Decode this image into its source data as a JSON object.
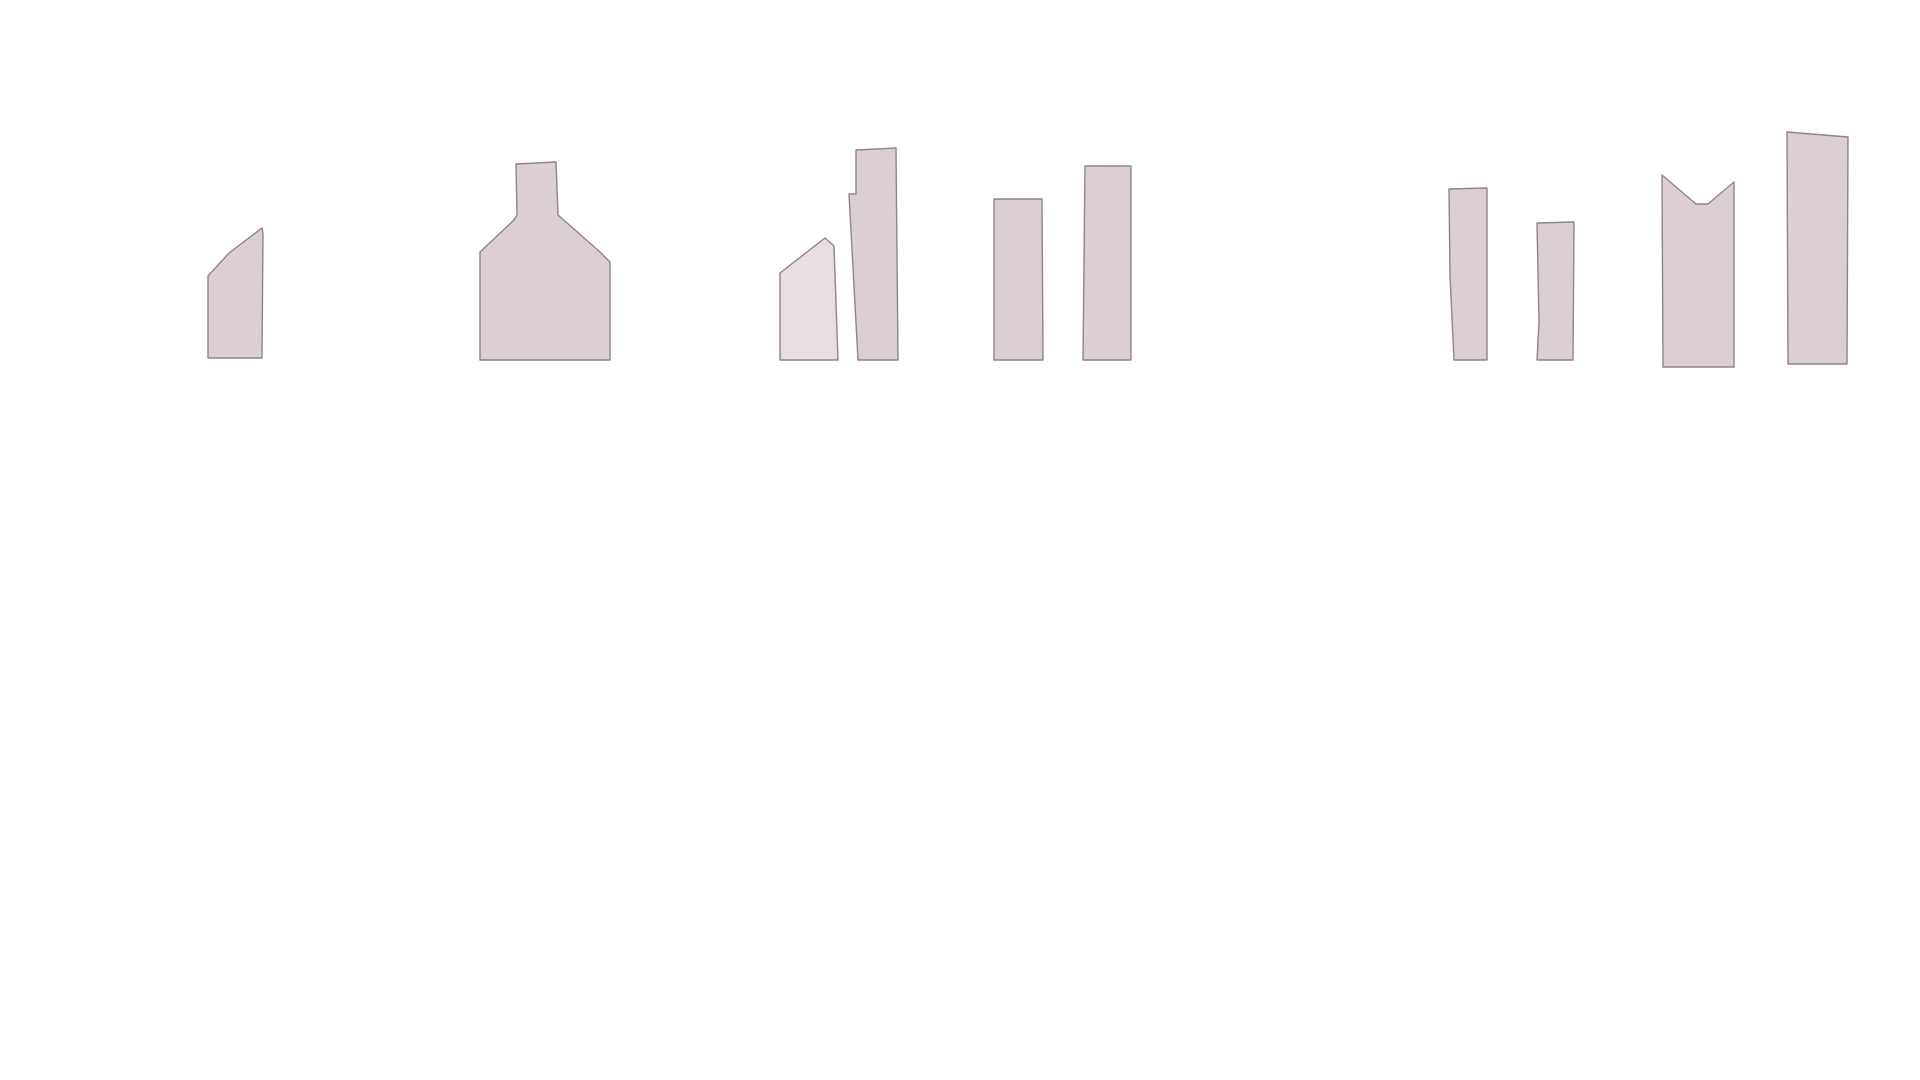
{
  "colors": {
    "background": "#ffffff",
    "shape_fill": "#dbcfd1",
    "shape_fill_light": "#e8dddf",
    "shape_stroke": "#8f8488"
  },
  "shapes": [
    {
      "name": "shape-1",
      "variant": "default"
    },
    {
      "name": "shape-2",
      "variant": "default"
    },
    {
      "name": "shape-3",
      "variant": "light"
    },
    {
      "name": "shape-4",
      "variant": "default"
    },
    {
      "name": "shape-5",
      "variant": "default"
    },
    {
      "name": "shape-6",
      "variant": "default"
    },
    {
      "name": "shape-7",
      "variant": "default"
    },
    {
      "name": "shape-8",
      "variant": "default"
    },
    {
      "name": "shape-9",
      "variant": "default"
    },
    {
      "name": "shape-10",
      "variant": "default"
    }
  ]
}
